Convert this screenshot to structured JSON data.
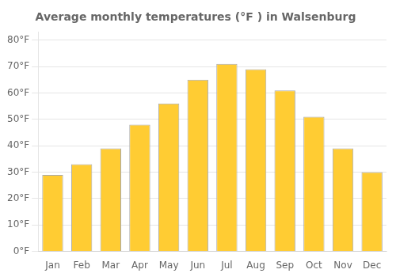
{
  "chart_data": {
    "type": "bar",
    "title": "Average monthly temperatures (°F ) in Walsenburg",
    "categories": [
      "Jan",
      "Feb",
      "Mar",
      "Apr",
      "May",
      "Jun",
      "Jul",
      "Aug",
      "Sep",
      "Oct",
      "Nov",
      "Dec"
    ],
    "values": [
      29,
      33,
      39,
      48,
      56,
      65,
      71,
      69,
      61,
      51,
      39,
      30
    ],
    "color": "#FFCC33",
    "ylim": [
      0,
      83
    ],
    "yticks": [
      {
        "value": 0,
        "label": "0°F"
      },
      {
        "value": 10,
        "label": "10°F"
      },
      {
        "value": 20,
        "label": "20°F"
      },
      {
        "value": 30,
        "label": "30°F"
      },
      {
        "value": 40,
        "label": "40°F"
      },
      {
        "value": 50,
        "label": "50°F"
      },
      {
        "value": 60,
        "label": "60°F"
      },
      {
        "value": 70,
        "label": "70°F"
      },
      {
        "value": 80,
        "label": "80°F"
      }
    ],
    "grid": true
  }
}
